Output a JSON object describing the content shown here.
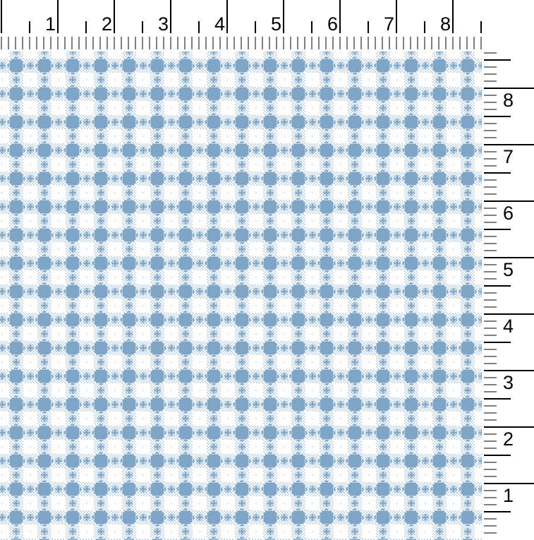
{
  "colors": {
    "fabric_blue": "#7fa5c6",
    "fabric_light_blue": "#bcd1e3",
    "fabric_white": "#ffffff",
    "ruler_background": "#ffffff",
    "tick_color": "#000000",
    "label_color": "#000000"
  },
  "top_ruler": {
    "labels": [
      "1",
      "2",
      "3",
      "4",
      "5",
      "6",
      "7",
      "8"
    ]
  },
  "right_ruler": {
    "labels": [
      "8",
      "7",
      "6",
      "5",
      "4",
      "3",
      "2",
      "1"
    ]
  },
  "fabric": {
    "description": "blue and white gingham check fabric swatch",
    "check_style": "woven mini-check with star weave texture"
  }
}
